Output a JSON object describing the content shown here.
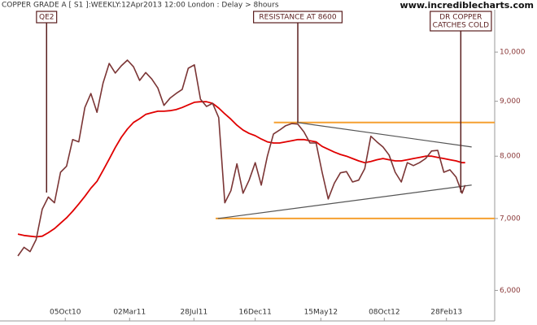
{
  "chart_data": {
    "type": "line",
    "title": "COPPER GRADE A [ S1 ]:WEEKLY:12Apr2013 12:00 London : Delay > 8hours",
    "source": "www.incrediblecharts.com",
    "log_scale": true,
    "x": [
      "2010-06-18",
      "2010-07-02",
      "2010-07-16",
      "2010-07-30",
      "2010-08-13",
      "2010-08-27",
      "2010-09-10",
      "2010-09-24",
      "2010-10-08",
      "2010-10-22",
      "2010-11-05",
      "2010-11-19",
      "2010-12-03",
      "2010-12-17",
      "2010-12-31",
      "2011-01-14",
      "2011-01-28",
      "2011-02-11",
      "2011-02-25",
      "2011-03-11",
      "2011-03-25",
      "2011-04-08",
      "2011-04-22",
      "2011-05-06",
      "2011-05-20",
      "2011-06-03",
      "2011-06-17",
      "2011-07-01",
      "2011-07-15",
      "2011-07-29",
      "2011-08-12",
      "2011-08-26",
      "2011-09-09",
      "2011-09-23",
      "2011-10-07",
      "2011-10-21",
      "2011-11-04",
      "2011-11-18",
      "2011-12-02",
      "2011-12-16",
      "2011-12-30",
      "2012-01-13",
      "2012-01-27",
      "2012-02-10",
      "2012-02-24",
      "2012-03-09",
      "2012-03-23",
      "2012-04-06",
      "2012-04-20",
      "2012-05-04",
      "2012-05-18",
      "2012-06-01",
      "2012-06-15",
      "2012-06-29",
      "2012-07-13",
      "2012-07-27",
      "2012-08-10",
      "2012-08-24",
      "2012-09-07",
      "2012-09-21",
      "2012-10-05",
      "2012-10-19",
      "2012-11-02",
      "2012-11-16",
      "2012-11-30",
      "2012-12-14",
      "2012-12-28",
      "2013-01-11",
      "2013-01-25",
      "2013-02-08",
      "2013-02-22",
      "2013-03-08",
      "2013-03-22",
      "2013-04-05",
      "2013-04-12"
    ],
    "series": [
      {
        "color": "#7b3535",
        "values": [
          6460,
          6580,
          6520,
          6690,
          7140,
          7330,
          7240,
          7730,
          7830,
          8290,
          8250,
          8880,
          9150,
          8790,
          9360,
          9760,
          9560,
          9710,
          9830,
          9690,
          9410,
          9570,
          9440,
          9260,
          8920,
          9060,
          9150,
          9230,
          9660,
          9730,
          9040,
          8900,
          8960,
          8690,
          7240,
          7430,
          7870,
          7390,
          7600,
          7890,
          7520,
          8000,
          8390,
          8460,
          8540,
          8580,
          8570,
          8430,
          8230,
          8230,
          7730,
          7300,
          7550,
          7720,
          7740,
          7570,
          7600,
          7790,
          8350,
          8250,
          8160,
          8020,
          7730,
          7570,
          7890,
          7840,
          7890,
          7960,
          8090,
          8100,
          7730,
          7770,
          7650,
          7390,
          7520
        ]
      },
      {
        "color": "#e00000",
        "values": [
          6770,
          6750,
          6740,
          6730,
          6740,
          6790,
          6850,
          6930,
          7010,
          7110,
          7220,
          7340,
          7470,
          7580,
          7760,
          7950,
          8150,
          8330,
          8480,
          8600,
          8670,
          8750,
          8780,
          8810,
          8810,
          8820,
          8840,
          8880,
          8930,
          8980,
          8990,
          8990,
          8960,
          8870,
          8760,
          8660,
          8550,
          8460,
          8400,
          8360,
          8300,
          8250,
          8230,
          8230,
          8250,
          8270,
          8290,
          8290,
          8270,
          8250,
          8170,
          8120,
          8070,
          8030,
          8000,
          7960,
          7920,
          7890,
          7910,
          7940,
          7960,
          7940,
          7920,
          7920,
          7940,
          7960,
          7980,
          8000,
          8000,
          7980,
          7960,
          7940,
          7920,
          7890,
          7890
        ]
      }
    ],
    "levels": [
      {
        "value": 8600,
        "start": "2012-01-28"
      },
      {
        "value": 7000,
        "start": "2011-09-16"
      }
    ],
    "level_color": "#f5a030",
    "trendlines": [
      {
        "x": [
          "2012-03-21",
          "2013-04-27"
        ],
        "values": [
          8600,
          8160
        ]
      },
      {
        "x": [
          "2011-09-21",
          "2013-04-27"
        ],
        "values": [
          7000,
          7520
        ]
      }
    ],
    "trendline_color": "#555555",
    "annotations": [
      {
        "lines": [
          "QE2"
        ],
        "x": "2010-08-23",
        "value": 7400
      },
      {
        "lines": [
          "RESISTANCE AT 8600"
        ],
        "x": "2012-03-23",
        "value": 8600
      },
      {
        "lines": [
          "DR COPPER",
          "CATCHES COLD"
        ],
        "x": "2013-04-02",
        "value": 7400
      }
    ],
    "xlim": [
      "2010-06-18",
      "2013-06-19"
    ],
    "xticks": [
      {
        "value": "2010-10-05",
        "label": "05Oct10"
      },
      {
        "value": "2011-03-02",
        "label": "02Mar11"
      },
      {
        "value": "2011-07-28",
        "label": "28Jul11"
      },
      {
        "value": "2011-12-16",
        "label": "16Dec11"
      },
      {
        "value": "2012-05-15",
        "label": "15May12"
      },
      {
        "value": "2012-10-08",
        "label": "08Oct12"
      },
      {
        "value": "2013-02-28",
        "label": "28Feb13"
      }
    ],
    "ylim": [
      5620,
      10950
    ],
    "yticks": [
      {
        "value": 6000,
        "label": "6,000"
      },
      {
        "value": 7000,
        "label": "7,000"
      },
      {
        "value": 8000,
        "label": "8,000"
      },
      {
        "value": 9000,
        "label": "9,000"
      },
      {
        "value": 10000,
        "label": "10,000"
      }
    ]
  }
}
